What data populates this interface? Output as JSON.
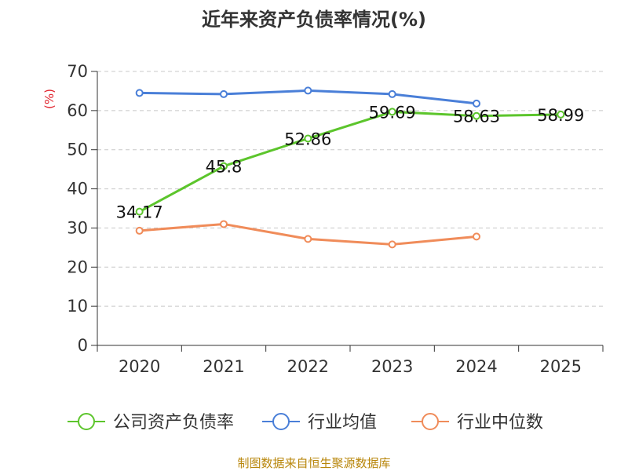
{
  "chart_data": {
    "type": "line",
    "title": "近年来资产负债率情况(%)",
    "ylabel": "(%)",
    "xlabel": "",
    "categories": [
      "2020",
      "2021",
      "2022",
      "2023",
      "2024",
      "2025"
    ],
    "yticks": [
      0,
      10,
      20,
      30,
      40,
      50,
      60,
      70
    ],
    "ylim": [
      0,
      70
    ],
    "grid": true,
    "legend_position": "bottom",
    "series": [
      {
        "name": "公司资产负债率",
        "color": "#5cc52c",
        "values": [
          34.17,
          45.8,
          52.86,
          59.69,
          58.63,
          58.99
        ],
        "labels": [
          "34.17",
          "45.8",
          "52.86",
          "59.69",
          "58.63",
          "58.99"
        ]
      },
      {
        "name": "行业均值",
        "color": "#4a7fd8",
        "values": [
          64.5,
          64.2,
          65.1,
          64.2,
          61.8,
          null
        ]
      },
      {
        "name": "行业中位数",
        "color": "#f08c5a",
        "values": [
          29.3,
          31.0,
          27.2,
          25.8,
          27.8,
          null
        ]
      }
    ]
  },
  "source": "制图数据来自恒生聚源数据库"
}
